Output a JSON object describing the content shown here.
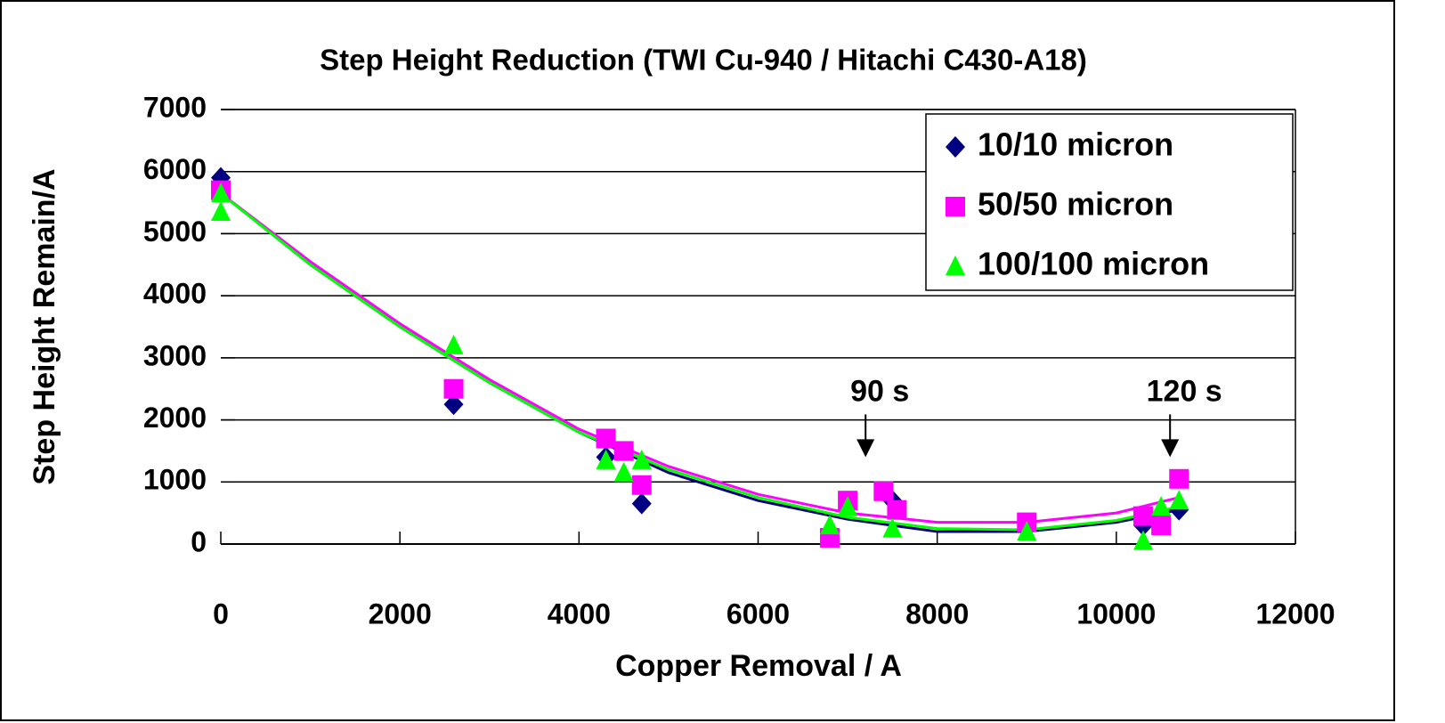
{
  "chart_data": {
    "type": "scatter",
    "title": "Step Height Reduction (TWI Cu-940 / Hitachi C430-A18)",
    "x_label": "Copper Removal / A",
    "y_label": "Step Height Remain/A",
    "xlim": [
      0,
      12000
    ],
    "xticks": [
      0,
      2000,
      4000,
      6000,
      8000,
      10000,
      12000
    ],
    "ylim": [
      0,
      7000
    ],
    "yticks": [
      0,
      1000,
      2000,
      3000,
      4000,
      5000,
      6000,
      7000
    ],
    "grid": true,
    "legend": "upper right",
    "trend_x": [
      0,
      1000,
      2000,
      3000,
      4000,
      5000,
      6000,
      7000,
      8000,
      9000,
      10000,
      10700
    ],
    "series": [
      {
        "name": "10/10 micron",
        "color": "#000080",
        "marker": "diamond",
        "x": [
          0,
          2600,
          4300,
          4700,
          6800,
          7500,
          10300,
          10700
        ],
        "values": [
          5900,
          2250,
          1400,
          650,
          200,
          700,
          300,
          550
        ],
        "trend_values": [
          5650,
          4500,
          3500,
          2600,
          1800,
          1150,
          700,
          400,
          200,
          200,
          350,
          550
        ]
      },
      {
        "name": "50/50 micron",
        "color": "#ff00ff",
        "marker": "square",
        "x": [
          0,
          2600,
          4300,
          4500,
          4700,
          6800,
          7000,
          7400,
          7550,
          9000,
          10300,
          10500,
          10700
        ],
        "values": [
          5700,
          2500,
          1700,
          1500,
          950,
          100,
          700,
          850,
          550,
          350,
          450,
          300,
          1050
        ],
        "trend_values": [
          5650,
          4550,
          3550,
          2650,
          1850,
          1250,
          800,
          500,
          350,
          350,
          500,
          750
        ]
      },
      {
        "name": "100/100 micron",
        "color": "#00ff00",
        "marker": "triangle",
        "x": [
          0,
          0,
          2600,
          4300,
          4500,
          4700,
          6800,
          7000,
          7500,
          9000,
          10300,
          10500,
          10700
        ],
        "values": [
          5650,
          5350,
          3200,
          1350,
          1150,
          1350,
          300,
          600,
          250,
          200,
          50,
          600,
          700
        ],
        "trend_values": [
          5650,
          4500,
          3500,
          2600,
          1800,
          1200,
          750,
          430,
          250,
          230,
          380,
          600
        ]
      }
    ],
    "annotations": [
      {
        "text": "90 s",
        "x": 7200,
        "y": 1400
      },
      {
        "text": "120 s",
        "x": 10600,
        "y": 1400
      }
    ]
  }
}
